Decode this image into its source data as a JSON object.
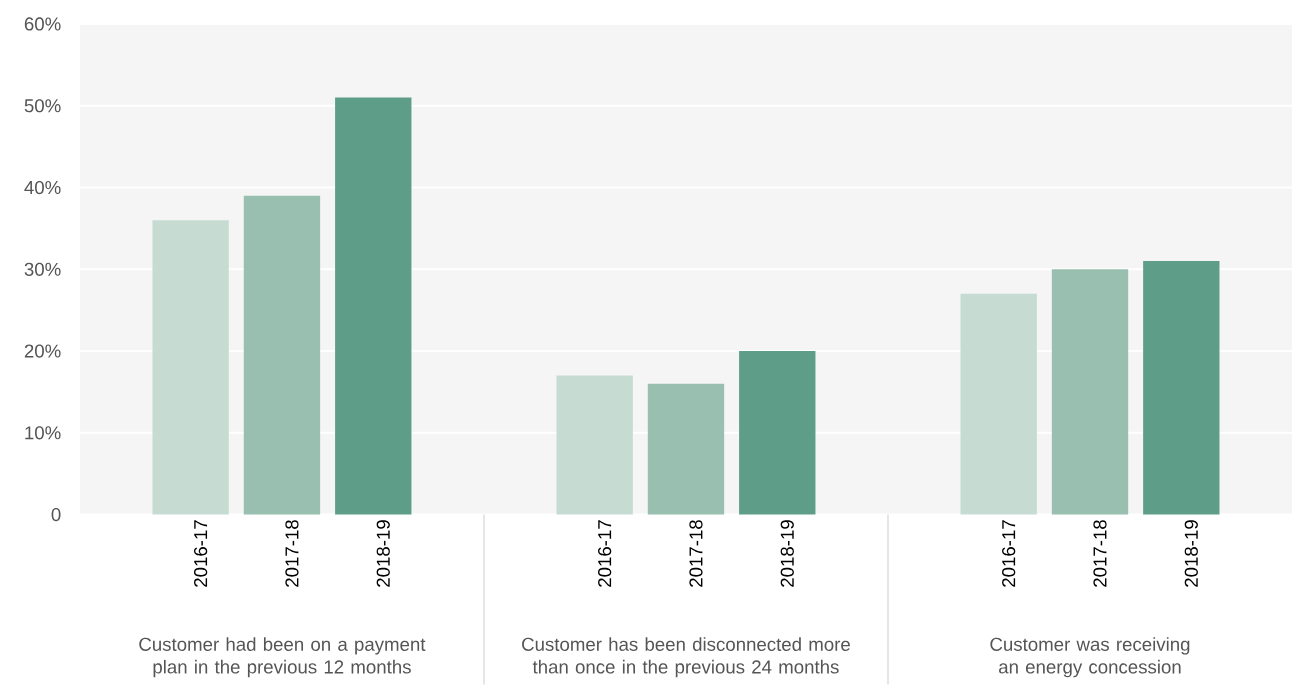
{
  "chart_data": {
    "type": "bar",
    "categories": [
      "Customer had been on a payment plan in the previous 12 months",
      "Customer has been disconnected more than once in the previous 24 months",
      "Customer was receiving an energy concession"
    ],
    "series": [
      {
        "name": "2016-17",
        "color": "#c6dcd3",
        "values": [
          36,
          17,
          27
        ]
      },
      {
        "name": "2017-18",
        "color": "#99bfb0",
        "values": [
          39,
          16,
          30
        ]
      },
      {
        "name": "2018-19",
        "color": "#5e9e88",
        "values": [
          51,
          20,
          31
        ]
      }
    ],
    "ylim": [
      0,
      60
    ],
    "yticks": [
      {
        "value": 0,
        "label": "0"
      },
      {
        "value": 10,
        "label": "10%"
      },
      {
        "value": 20,
        "label": "20%"
      },
      {
        "value": 30,
        "label": "30%"
      },
      {
        "value": 40,
        "label": "40%"
      },
      {
        "value": 50,
        "label": "50%"
      },
      {
        "value": 60,
        "label": "60%"
      }
    ],
    "grid": "y"
  }
}
